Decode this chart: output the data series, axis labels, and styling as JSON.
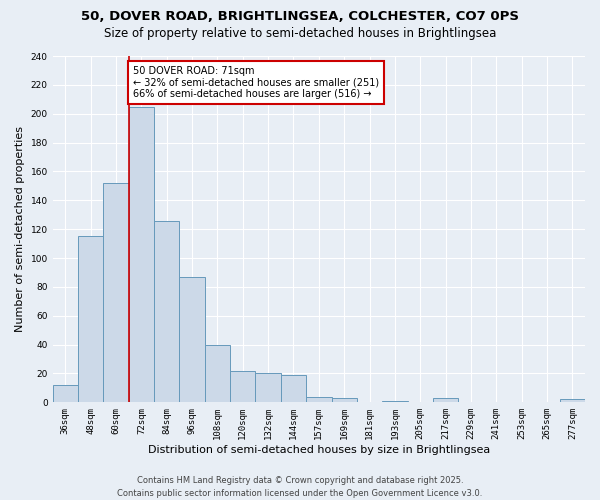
{
  "title": "50, DOVER ROAD, BRIGHTLINGSEA, COLCHESTER, CO7 0PS",
  "subtitle": "Size of property relative to semi-detached houses in Brightlingsea",
  "xlabel": "Distribution of semi-detached houses by size in Brightlingsea",
  "ylabel": "Number of semi-detached properties",
  "categories": [
    "36sqm",
    "48sqm",
    "60sqm",
    "72sqm",
    "84sqm",
    "96sqm",
    "108sqm",
    "120sqm",
    "132sqm",
    "144sqm",
    "157sqm",
    "169sqm",
    "181sqm",
    "193sqm",
    "205sqm",
    "217sqm",
    "229sqm",
    "241sqm",
    "253sqm",
    "265sqm",
    "277sqm"
  ],
  "values": [
    12,
    115,
    152,
    205,
    126,
    87,
    40,
    22,
    20,
    19,
    4,
    3,
    0,
    1,
    0,
    3,
    0,
    0,
    0,
    0,
    2
  ],
  "bar_color": "#ccd9e8",
  "bar_edge_color": "#6699bb",
  "red_line_x": 2.5,
  "annotation_text": "50 DOVER ROAD: 71sqm\n← 32% of semi-detached houses are smaller (251)\n66% of semi-detached houses are larger (516) →",
  "annotation_box_color": "#ffffff",
  "annotation_box_edge": "#cc0000",
  "footer": "Contains HM Land Registry data © Crown copyright and database right 2025.\nContains public sector information licensed under the Open Government Licence v3.0.",
  "ylim": [
    0,
    240
  ],
  "yticks": [
    0,
    20,
    40,
    60,
    80,
    100,
    120,
    140,
    160,
    180,
    200,
    220,
    240
  ],
  "background_color": "#e8eef5",
  "grid_color": "#ffffff",
  "title_fontsize": 9.5,
  "subtitle_fontsize": 8.5,
  "axis_label_fontsize": 8,
  "tick_fontsize": 6.5,
  "footer_fontsize": 6,
  "annotation_fontsize": 7
}
